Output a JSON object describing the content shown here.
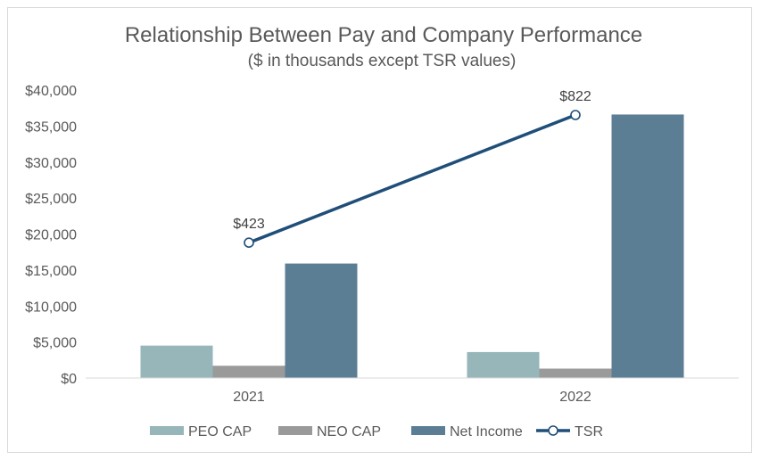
{
  "chart_data": {
    "type": "bar",
    "title": "Relationship Between Pay and Company Performance",
    "subtitle": "($ in thousands except TSR values)",
    "categories": [
      "2021",
      "2022"
    ],
    "ylim": [
      0,
      40000
    ],
    "yticks": [
      "$0",
      "$5,000",
      "$10,000",
      "$15,000",
      "$20,000",
      "$25,000",
      "$30,000",
      "$35,000",
      "$40,000"
    ],
    "ytick_values": [
      0,
      5000,
      10000,
      15000,
      20000,
      25000,
      30000,
      35000,
      40000
    ],
    "grid": false,
    "legend_position": "bottom",
    "series": [
      {
        "name": "PEO CAP",
        "type": "bar",
        "color": "#96b6ba",
        "values": [
          4500,
          3600
        ]
      },
      {
        "name": "NEO CAP",
        "type": "bar",
        "color": "#9a9a9a",
        "values": [
          1700,
          1300
        ]
      },
      {
        "name": "Net Income",
        "type": "bar",
        "color": "#5c7e94",
        "values": [
          15900,
          36600
        ]
      },
      {
        "name": "TSR",
        "type": "line",
        "color": "#1f4e79",
        "values": [
          423,
          822
        ],
        "labels": [
          "$423",
          "$822"
        ]
      }
    ]
  }
}
